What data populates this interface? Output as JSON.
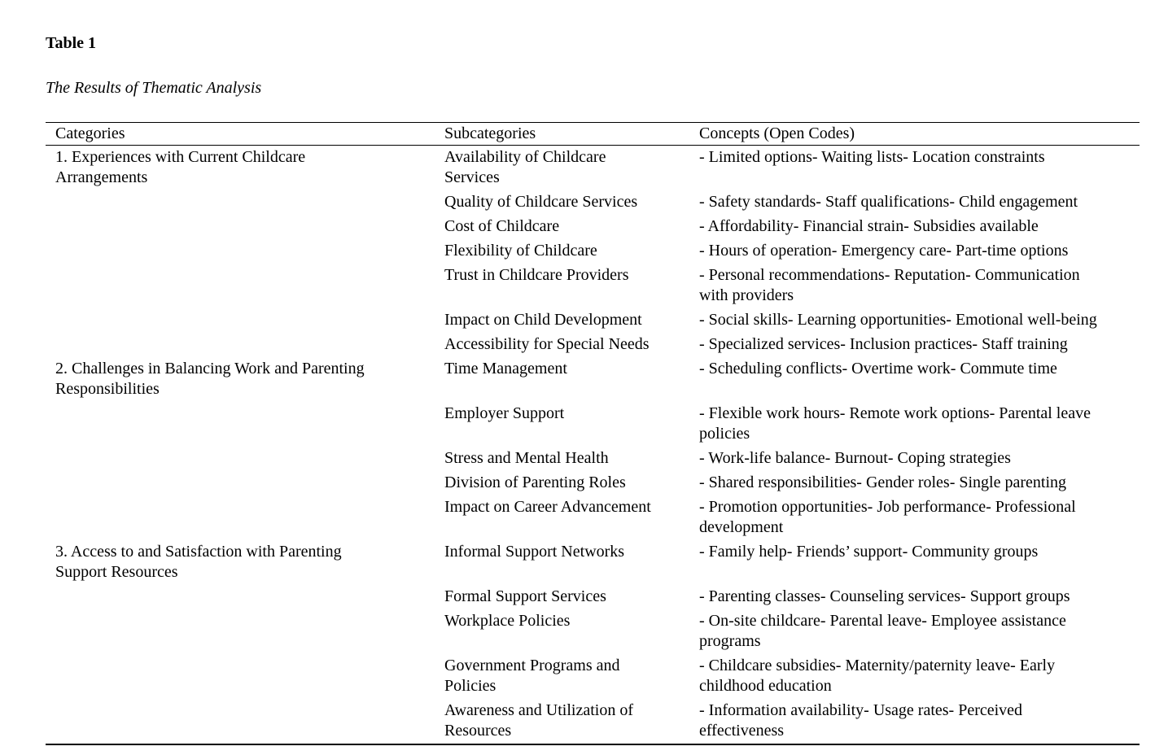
{
  "page": {
    "table_label": "Table 1",
    "caption": "The Results of Thematic Analysis"
  },
  "chart_data": {
    "type": "table",
    "title": "Table 1. The Results of Thematic Analysis",
    "headers": [
      "Categories",
      "Subcategories",
      "Concepts (Open Codes)"
    ],
    "grid": "horizontal-rules-only"
  },
  "table": {
    "headers": [
      "Categories",
      "Subcategories",
      "Concepts (Open Codes)"
    ],
    "rows": [
      {
        "category": "1. Experiences with Current Childcare\nArrangements",
        "subcategory": "Availability of Childcare\nServices",
        "concepts": "- Limited options- Waiting lists- Location constraints"
      },
      {
        "category": "",
        "subcategory": "Quality of Childcare Services",
        "concepts": "- Safety standards- Staff qualifications- Child engagement"
      },
      {
        "category": "",
        "subcategory": "Cost of Childcare",
        "concepts": "- Affordability- Financial strain- Subsidies available"
      },
      {
        "category": "",
        "subcategory": "Flexibility of Childcare",
        "concepts": "- Hours of operation- Emergency care- Part-time options"
      },
      {
        "category": "",
        "subcategory": "Trust in Childcare Providers",
        "concepts": "- Personal recommendations- Reputation- Communication\nwith providers"
      },
      {
        "category": "",
        "subcategory": "Impact on Child Development",
        "concepts": "- Social skills- Learning opportunities- Emotional well-being"
      },
      {
        "category": "",
        "subcategory": "Accessibility for Special Needs",
        "concepts": "- Specialized services- Inclusion practices- Staff training"
      },
      {
        "category": "2. Challenges in Balancing Work and Parenting\nResponsibilities",
        "subcategory": "Time Management",
        "concepts": "- Scheduling conflicts- Overtime work- Commute time"
      },
      {
        "category": "",
        "subcategory": "Employer Support",
        "concepts": "- Flexible work hours- Remote work options- Parental leave\npolicies"
      },
      {
        "category": "",
        "subcategory": "Stress and Mental Health",
        "concepts": "- Work-life balance- Burnout- Coping strategies"
      },
      {
        "category": "",
        "subcategory": "Division of Parenting Roles",
        "concepts": "- Shared responsibilities- Gender roles- Single parenting"
      },
      {
        "category": "",
        "subcategory": "Impact on Career Advancement",
        "concepts": "- Promotion opportunities- Job performance- Professional\ndevelopment"
      },
      {
        "category": "3. Access to and Satisfaction with Parenting\nSupport Resources",
        "subcategory": "Informal Support Networks",
        "concepts": "- Family help- Friends’ support- Community groups"
      },
      {
        "category": "",
        "subcategory": "Formal Support Services",
        "concepts": "- Parenting classes- Counseling services- Support groups"
      },
      {
        "category": "",
        "subcategory": "Workplace Policies",
        "concepts": "- On-site childcare- Parental leave- Employee assistance\nprograms"
      },
      {
        "category": "",
        "subcategory": "Government Programs and\nPolicies",
        "concepts": "- Childcare subsidies- Maternity/paternity leave- Early\nchildhood education"
      },
      {
        "category": "",
        "subcategory": "Awareness and Utilization of\nResources",
        "concepts": "- Information availability- Usage rates- Perceived\neffectiveness"
      }
    ]
  }
}
